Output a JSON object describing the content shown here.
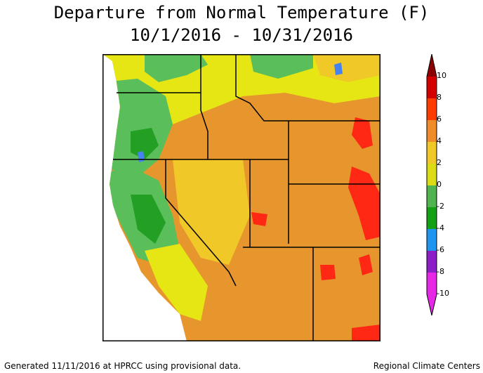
{
  "title": "Departure from Normal Temperature (F)",
  "subtitle": "10/1/2016 - 10/31/2016",
  "legend": {
    "labels": [
      "10",
      "8",
      "6",
      "4",
      "2",
      "0",
      "-2",
      "-4",
      "-6",
      "-8",
      "-10"
    ],
    "colors": [
      "#8b0000",
      "#d40000",
      "#ff3c00",
      "#f08c28",
      "#f0c828",
      "#dcdc14",
      "#50b450",
      "#14a014",
      "#1e96f0",
      "#8c1ec8",
      "#e628e6"
    ]
  },
  "footer": {
    "left": "Generated 11/11/2016 at HPRCC using provisional data.",
    "right": "Regional Climate Centers"
  },
  "map_colors": {
    "ocean": "#ffffff",
    "green": "#5abe5a",
    "dark_green": "#23a023",
    "yellow": "#e6e614",
    "yellow_orange": "#f0c828",
    "orange": "#e6962d",
    "dark_orange": "#e67828",
    "red": "#ff2814",
    "blue": "#4682f0",
    "border": "#000000"
  }
}
